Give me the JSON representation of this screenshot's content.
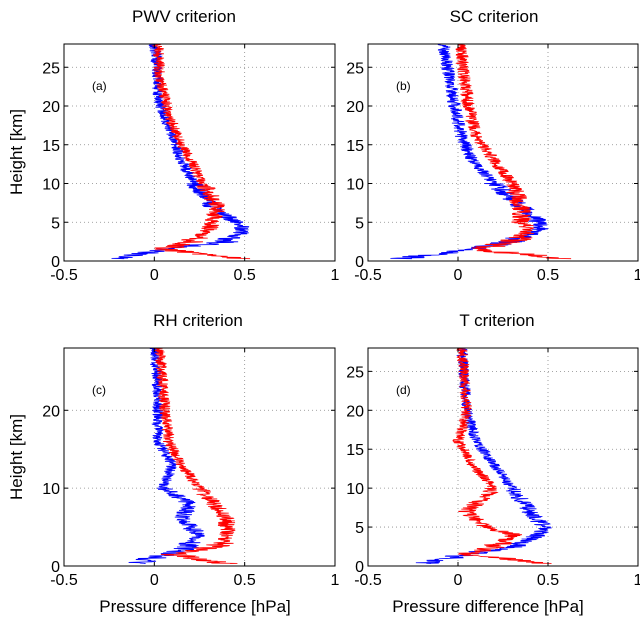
{
  "figure": {
    "line_colors": {
      "blue": "#0000ff",
      "red": "#ff0000"
    }
  },
  "chart_data": [
    {
      "type": "line",
      "panel_label": "(a)",
      "title": "PWV criterion",
      "xlabel": "",
      "ylabel": "Height [km]",
      "xlim": [
        -0.5,
        1
      ],
      "ylim": [
        0,
        28
      ],
      "xticks": [
        -0.5,
        0,
        0.5,
        1
      ],
      "xtick_labels": [
        "-0.5",
        "0",
        "0.5",
        "1"
      ],
      "yticks": [
        0,
        5,
        10,
        15,
        20,
        25
      ],
      "ytick_labels": [
        "0",
        "5",
        "10",
        "15",
        "20",
        "25"
      ],
      "grid": true,
      "noise": 0.035,
      "series": [
        {
          "color": "#0000ff",
          "x": [
            -0.2,
            0.05,
            0.4,
            0.5,
            0.45,
            0.32,
            0.22,
            0.15,
            0.1,
            0.05,
            0.02,
            0.02,
            0.0
          ],
          "y": [
            0.3,
            1.5,
            2.5,
            4,
            5,
            7,
            10,
            13,
            16,
            19,
            21,
            24,
            28
          ]
        },
        {
          "color": "#ff0000",
          "x": [
            0.5,
            0.05,
            0.2,
            0.3,
            0.32,
            0.35,
            0.27,
            0.2,
            0.13,
            0.08,
            0.06,
            0.03,
            0.02
          ],
          "y": [
            0.3,
            1.5,
            2.5,
            4,
            5,
            7,
            10,
            13,
            16,
            19,
            21,
            24,
            28
          ]
        }
      ]
    },
    {
      "type": "line",
      "panel_label": "(b)",
      "title": "SC criterion",
      "xlabel": "",
      "ylabel": "",
      "xlim": [
        -0.5,
        1
      ],
      "ylim": [
        0,
        28
      ],
      "xticks": [
        -0.5,
        0,
        0.5,
        1
      ],
      "xtick_labels": [
        "-0.5",
        "0",
        "0.5",
        "1"
      ],
      "yticks": [
        0,
        5,
        10,
        15,
        20,
        25
      ],
      "ytick_labels": [
        "0",
        "5",
        "10",
        "15",
        "20",
        "25"
      ],
      "grid": true,
      "noise": 0.04,
      "series": [
        {
          "color": "#0000ff",
          "x": [
            -0.3,
            0.05,
            0.3,
            0.45,
            0.45,
            0.35,
            0.2,
            0.08,
            0.02,
            -0.02,
            -0.05,
            -0.08
          ],
          "y": [
            0.3,
            1.5,
            2.5,
            4,
            5,
            7,
            10,
            13,
            16,
            20,
            24,
            28
          ]
        },
        {
          "color": "#ff0000",
          "x": [
            0.6,
            0.1,
            0.3,
            0.4,
            0.35,
            0.35,
            0.3,
            0.2,
            0.1,
            0.06,
            0.03,
            0.02
          ],
          "y": [
            0.3,
            1.5,
            2.5,
            4,
            5,
            7,
            10,
            13,
            16,
            20,
            24,
            28
          ]
        }
      ]
    },
    {
      "type": "line",
      "panel_label": "(c)",
      "title": "RH  criterion",
      "xlabel": "Pressure difference [hPa]",
      "ylabel": "Height [km]",
      "xlim": [
        -0.5,
        1
      ],
      "ylim": [
        0,
        28
      ],
      "xticks": [
        -0.5,
        0,
        0.5,
        1
      ],
      "xtick_labels": [
        "-0.5",
        "0",
        "0.5",
        "1"
      ],
      "yticks": [
        0,
        10,
        20
      ],
      "ytick_labels": [
        "0",
        "10",
        "20"
      ],
      "grid": true,
      "noise": 0.035,
      "series": [
        {
          "color": "#0000ff",
          "x": [
            -0.1,
            0.05,
            0.2,
            0.25,
            0.15,
            0.2,
            0.05,
            0.1,
            0.02,
            0.02,
            0.0
          ],
          "y": [
            0.3,
            1.5,
            2.5,
            4,
            6,
            8,
            10,
            13,
            16,
            22,
            28
          ]
        },
        {
          "color": "#ff0000",
          "x": [
            0.4,
            0.1,
            0.35,
            0.4,
            0.4,
            0.33,
            0.25,
            0.15,
            0.08,
            0.05,
            0.03
          ],
          "y": [
            0.3,
            1.5,
            2.5,
            4,
            6,
            8,
            10,
            13,
            16,
            22,
            28
          ]
        }
      ]
    },
    {
      "type": "line",
      "panel_label": "(d)",
      "title": "T criterion",
      "xlabel": "Pressure difference [hPa]",
      "ylabel": "",
      "xlim": [
        -0.5,
        1
      ],
      "ylim": [
        0,
        28
      ],
      "xticks": [
        -0.5,
        0,
        0.5,
        1
      ],
      "xtick_labels": [
        "-0.5",
        "0",
        "0.5",
        "1"
      ],
      "yticks": [
        0,
        5,
        10,
        15,
        20,
        25
      ],
      "ytick_labels": [
        "0",
        "5",
        "10",
        "15",
        "20",
        "25"
      ],
      "grid": true,
      "noise": 0.035,
      "series": [
        {
          "color": "#0000ff",
          "x": [
            -0.2,
            0.05,
            0.3,
            0.45,
            0.48,
            0.4,
            0.3,
            0.2,
            0.1,
            0.05,
            0.02
          ],
          "y": [
            0.3,
            1.5,
            2.5,
            4,
            5,
            7,
            10,
            13,
            16,
            20,
            28
          ]
        },
        {
          "color": "#ff0000",
          "x": [
            0.5,
            0.05,
            0.2,
            0.32,
            0.15,
            0.05,
            0.2,
            0.08,
            0.0,
            0.05,
            0.02
          ],
          "y": [
            0.3,
            1.5,
            2.5,
            4,
            5,
            7,
            10,
            13,
            16,
            20,
            28
          ]
        }
      ]
    }
  ]
}
